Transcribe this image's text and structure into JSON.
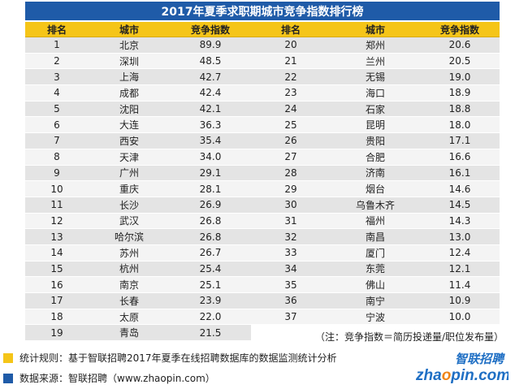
{
  "title": "2017年夏季求职期城市竞争指数排行榜",
  "headers": [
    "排名",
    "城市",
    "竞争指数",
    "排名",
    "城市",
    "竞争指数"
  ],
  "left_rows": [
    {
      "rank": "1",
      "city": "北京",
      "index": "89.9"
    },
    {
      "rank": "2",
      "city": "深圳",
      "index": "48.5"
    },
    {
      "rank": "3",
      "city": "上海",
      "index": "42.7"
    },
    {
      "rank": "4",
      "city": "成都",
      "index": "42.4"
    },
    {
      "rank": "5",
      "city": "沈阳",
      "index": "42.1"
    },
    {
      "rank": "6",
      "city": "大连",
      "index": "36.3"
    },
    {
      "rank": "7",
      "city": "西安",
      "index": "35.4"
    },
    {
      "rank": "8",
      "city": "天津",
      "index": "34.0"
    },
    {
      "rank": "9",
      "city": "广州",
      "index": "29.1"
    },
    {
      "rank": "10",
      "city": "重庆",
      "index": "28.1"
    },
    {
      "rank": "11",
      "city": "长沙",
      "index": "26.9"
    },
    {
      "rank": "12",
      "city": "武汉",
      "index": "26.8"
    },
    {
      "rank": "13",
      "city": "哈尔滨",
      "index": "26.8"
    },
    {
      "rank": "14",
      "city": "苏州",
      "index": "26.7"
    },
    {
      "rank": "15",
      "city": "杭州",
      "index": "25.4"
    },
    {
      "rank": "16",
      "city": "南京",
      "index": "25.1"
    },
    {
      "rank": "17",
      "city": "长春",
      "index": "23.9"
    },
    {
      "rank": "18",
      "city": "太原",
      "index": "22.0"
    },
    {
      "rank": "19",
      "city": "青岛",
      "index": "21.5"
    }
  ],
  "right_rows": [
    {
      "rank": "20",
      "city": "郑州",
      "index": "20.6"
    },
    {
      "rank": "21",
      "city": "兰州",
      "index": "20.5"
    },
    {
      "rank": "22",
      "city": "无锡",
      "index": "19.0"
    },
    {
      "rank": "23",
      "city": "海口",
      "index": "18.9"
    },
    {
      "rank": "24",
      "city": "石家",
      "index": "18.8"
    },
    {
      "rank": "25",
      "city": "昆明",
      "index": "18.0"
    },
    {
      "rank": "26",
      "city": "贵阳",
      "index": "17.1"
    },
    {
      "rank": "27",
      "city": "合肥",
      "index": "16.6"
    },
    {
      "rank": "28",
      "city": "济南",
      "index": "16.1"
    },
    {
      "rank": "29",
      "city": "烟台",
      "index": "14.6"
    },
    {
      "rank": "30",
      "city": "乌鲁木齐",
      "index": "14.5"
    },
    {
      "rank": "31",
      "city": "福州",
      "index": "14.3"
    },
    {
      "rank": "32",
      "city": "南昌",
      "index": "13.0"
    },
    {
      "rank": "33",
      "city": "厦门",
      "index": "12.4"
    },
    {
      "rank": "34",
      "city": "东莞",
      "index": "12.1"
    },
    {
      "rank": "35",
      "city": "佛山",
      "index": "11.4"
    },
    {
      "rank": "36",
      "city": "南宁",
      "index": "10.9"
    },
    {
      "rank": "37",
      "city": "宁波",
      "index": "10.0"
    },
    {
      "rank": "",
      "city": "",
      "index": ""
    }
  ],
  "note": "（注：竞争指数＝简历投递量/职位发布量）",
  "legend": [
    {
      "text": "统计规则：基于智联招聘2017年夏季在线招聘数据库的数据监测统计分析",
      "color": "#f5c518"
    },
    {
      "text": "数据来源：智联招聘（www.zhaopin.com）",
      "color": "#1f5ba8"
    }
  ],
  "logo": {
    "cn": "智联招聘",
    "en_prefix": "zha",
    "en_o": "o",
    "en_suffix": "pin.com",
    "blue": "#1f6fc4",
    "orange": "#f08519"
  }
}
